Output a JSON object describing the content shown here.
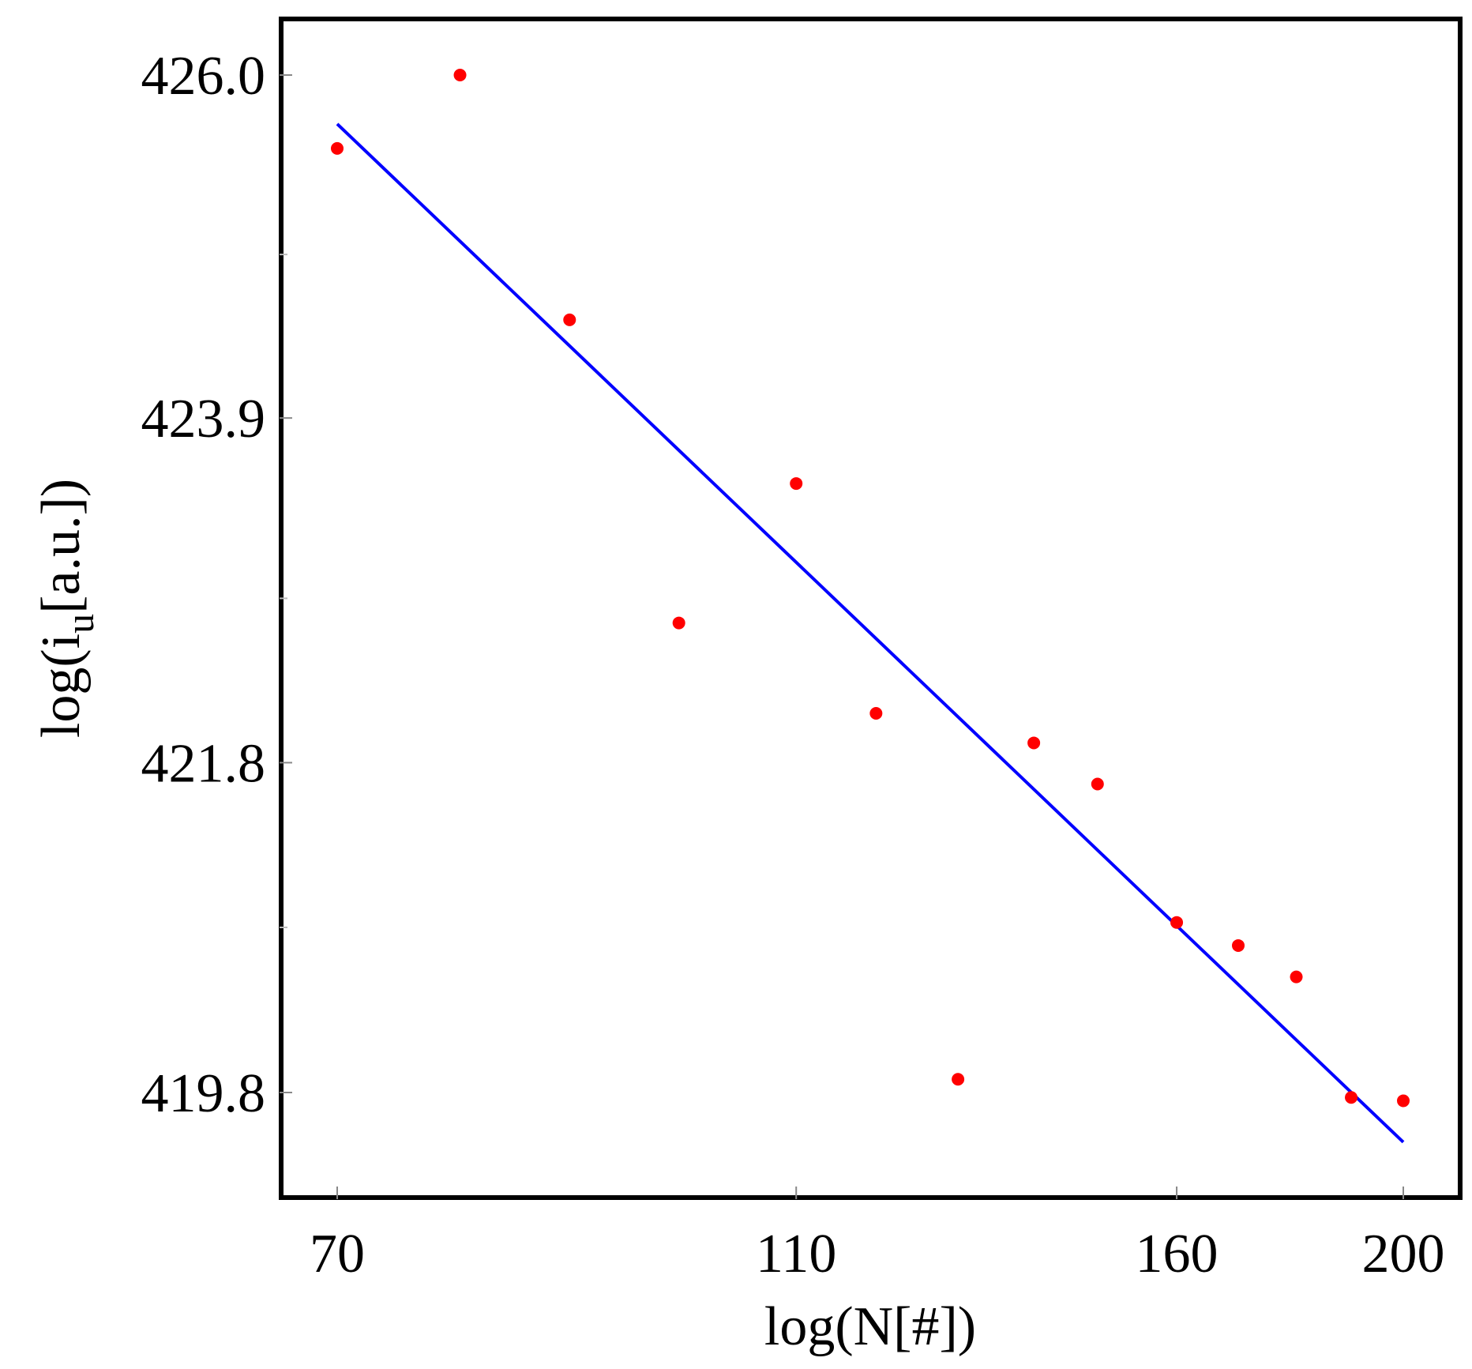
{
  "chart_data": {
    "type": "scatter",
    "title": "",
    "xlabel": "log(N[#])",
    "ylabel": {
      "prefix": "log(i",
      "subscript": "u",
      "suffix": "[a.u.])"
    },
    "x_axis": {
      "scale": "log",
      "ticks": [
        70,
        110,
        160,
        200
      ],
      "tick_labels": [
        "70",
        "110",
        "160",
        "200"
      ],
      "range": [
        66,
        210
      ]
    },
    "y_axis": {
      "scale": "log",
      "ticks": [
        419.8,
        421.8,
        423.9,
        426.0
      ],
      "tick_labels": [
        "419.8",
        "421.8",
        "423.9",
        "426.0"
      ],
      "minor_ticks": [
        420.8,
        422.8,
        424.9
      ],
      "range": [
        419.2,
        426.3
      ]
    },
    "grid": false,
    "legend": "none",
    "series": [
      {
        "kind": "points",
        "color": "#ff0000",
        "points": [
          {
            "x": 70,
            "y": 425.55
          },
          {
            "x": 79,
            "y": 426.0
          },
          {
            "x": 88,
            "y": 424.5
          },
          {
            "x": 98,
            "y": 422.65
          },
          {
            "x": 110,
            "y": 423.5
          },
          {
            "x": 119,
            "y": 422.1
          },
          {
            "x": 129,
            "y": 419.88
          },
          {
            "x": 139,
            "y": 421.92
          },
          {
            "x": 148,
            "y": 421.67
          },
          {
            "x": 160,
            "y": 420.83
          },
          {
            "x": 170,
            "y": 420.69
          },
          {
            "x": 180,
            "y": 420.5
          },
          {
            "x": 190,
            "y": 419.77
          },
          {
            "x": 200,
            "y": 419.75
          }
        ]
      },
      {
        "kind": "fit-line",
        "color": "#0000ff",
        "points": [
          {
            "x": 70,
            "y": 425.7
          },
          {
            "x": 200,
            "y": 419.5
          }
        ]
      }
    ]
  }
}
